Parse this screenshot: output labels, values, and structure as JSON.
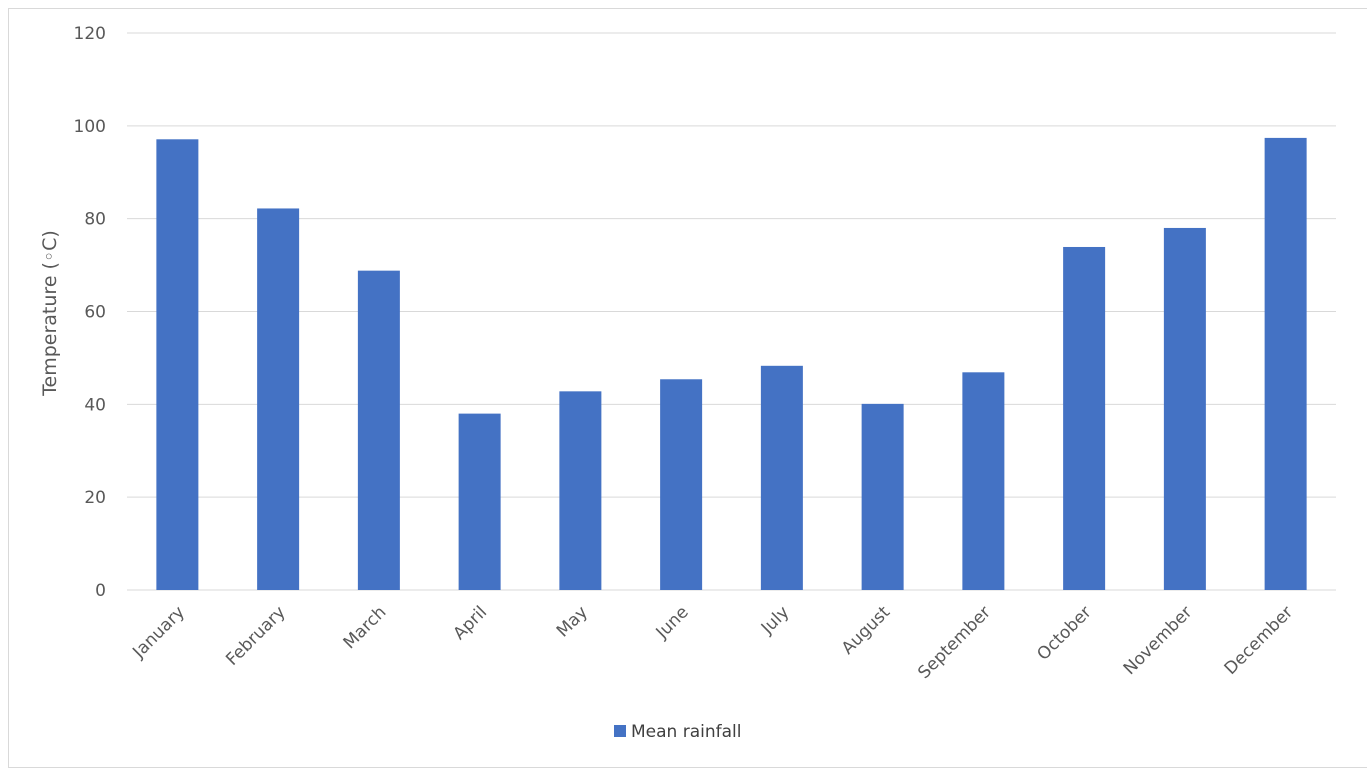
{
  "chart_data": {
    "type": "bar",
    "title": "",
    "xlabel": "",
    "ylabel": "Temperature (◦C)",
    "ylim": [
      0,
      120
    ],
    "yticks": [
      0,
      20,
      40,
      60,
      80,
      100,
      120
    ],
    "grid": true,
    "legend_position": "bottom",
    "categories": [
      "January",
      "February",
      "March",
      "April",
      "May",
      "June",
      "July",
      "August",
      "September",
      "October",
      "November",
      "December"
    ],
    "series": [
      {
        "name": "Mean rainfall",
        "color": "#4472c4",
        "values": [
          97.1,
          82.2,
          68.8,
          38.0,
          42.8,
          45.4,
          48.3,
          40.1,
          46.9,
          73.9,
          78.0,
          97.4
        ]
      }
    ]
  }
}
